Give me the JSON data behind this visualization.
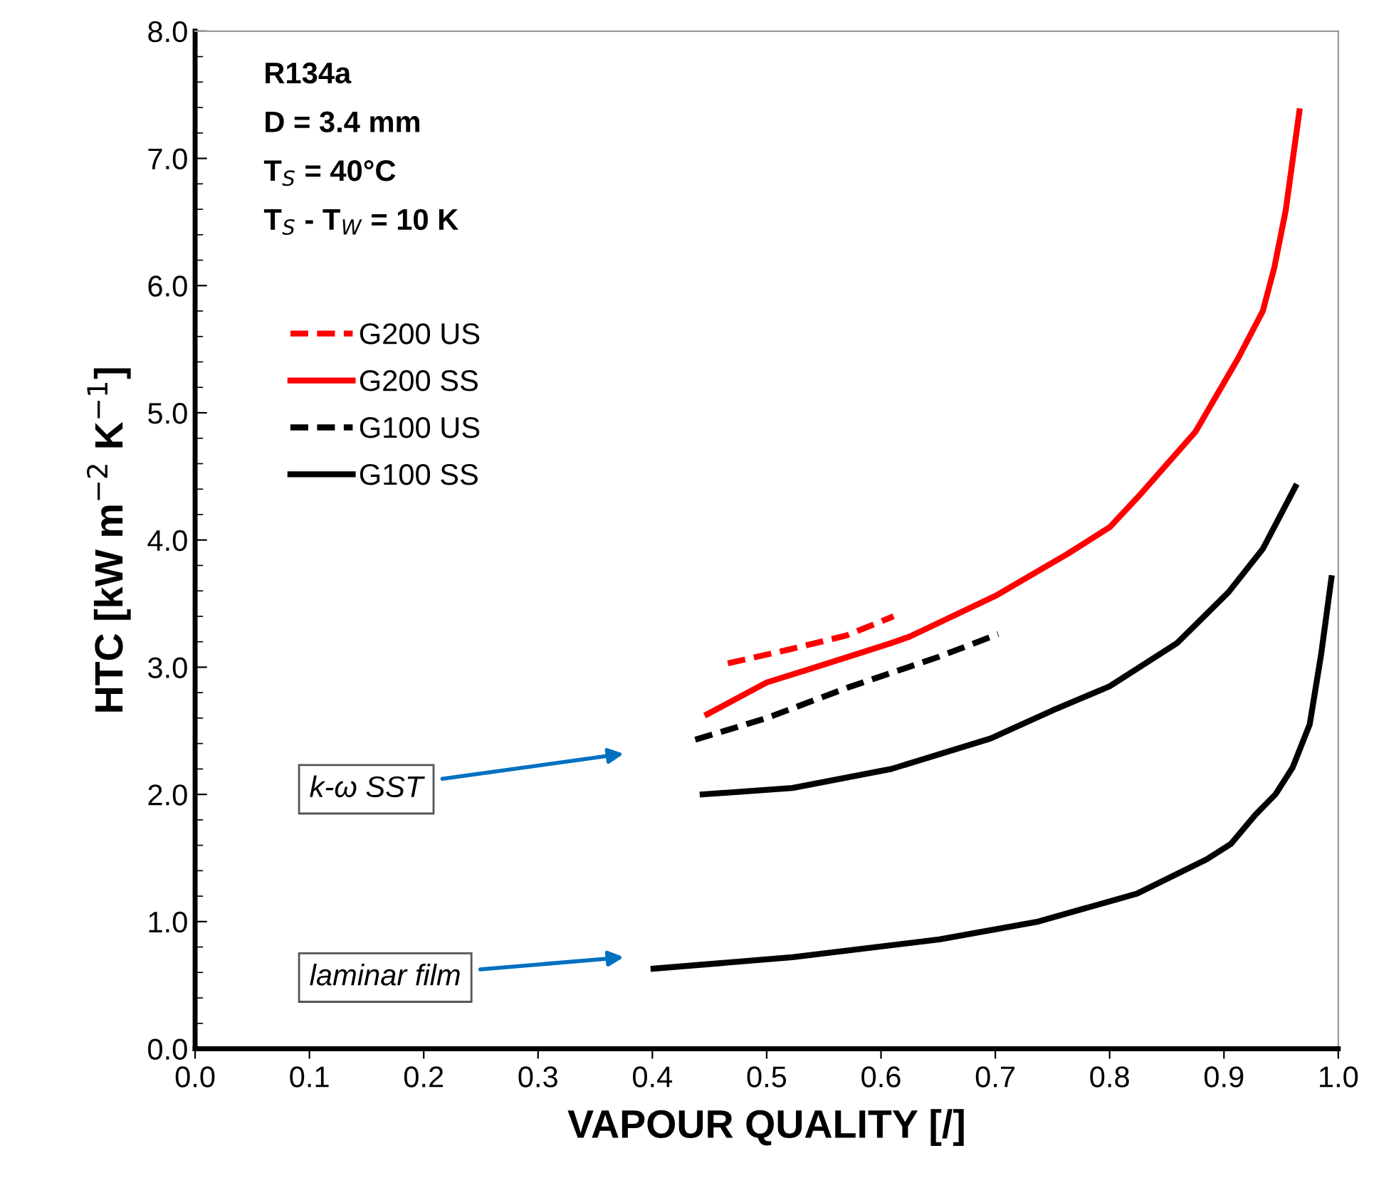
{
  "chart_data": {
    "type": "line",
    "xlabel": "VAPOUR QUALITY [/]",
    "ylabel": "HTC [kW m$^{−2}$ K$^{−1}$]",
    "xlim": [
      0,
      1
    ],
    "ylim": [
      0,
      8
    ],
    "xticks": [
      {
        "value": 0,
        "label": "0.0"
      },
      {
        "value": 0.1,
        "label": "0.1"
      },
      {
        "value": 0.2,
        "label": "0.2"
      },
      {
        "value": 0.3,
        "label": "0.3"
      },
      {
        "value": 0.4,
        "label": "0.4"
      },
      {
        "value": 0.5,
        "label": "0.5"
      },
      {
        "value": 0.6,
        "label": "0.6"
      },
      {
        "value": 0.7,
        "label": "0.7"
      },
      {
        "value": 0.8,
        "label": "0.8"
      },
      {
        "value": 0.9,
        "label": "0.9"
      },
      {
        "value": 1,
        "label": "1.0"
      }
    ],
    "yticks": [
      {
        "value": 0,
        "label": "0.0"
      },
      {
        "value": 1,
        "label": "1.0"
      },
      {
        "value": 2,
        "label": "2.0"
      },
      {
        "value": 3,
        "label": "3.0"
      },
      {
        "value": 4,
        "label": "4.0"
      },
      {
        "value": 5,
        "label": "5.0"
      },
      {
        "value": 6,
        "label": "6.0"
      },
      {
        "value": 7,
        "label": "7.0"
      },
      {
        "value": 8,
        "label": "8.0"
      }
    ],
    "grid": false,
    "legend": "top left",
    "marker": "none",
    "series": [
      {
        "name": "G200 US",
        "color": "#ff0000",
        "line_style": "dashed",
        "x": [
          0.466,
          0.52,
          0.57,
          0.611
        ],
        "values": [
          3.03,
          3.14,
          3.25,
          3.4
        ]
      },
      {
        "name": "G200 SS",
        "color": "#ff0000",
        "line_style": "solid",
        "x": [
          0.448,
          0.5,
          0.55,
          0.609,
          0.625,
          0.7,
          0.763,
          0.8,
          0.825,
          0.875,
          0.9125,
          0.934,
          0.944,
          0.954,
          0.966
        ],
        "values": [
          2.63,
          2.88,
          3.02,
          3.19,
          3.24,
          3.56,
          3.89,
          4.1,
          4.34,
          4.85,
          5.43,
          5.8,
          6.14,
          6.59,
          7.37
        ]
      },
      {
        "name": "G100 US",
        "color": "#000000",
        "line_style": "dashed",
        "x": [
          0.4375,
          0.5,
          0.571,
          0.65,
          0.7025
        ],
        "values": [
          2.43,
          2.6,
          2.84,
          3.08,
          3.26
        ]
      },
      {
        "name": "G100 SS",
        "color": "#000000",
        "line_style": "solid",
        "x": [
          0.444,
          0.5225,
          0.609,
          0.696,
          0.75,
          0.8,
          0.859,
          0.904,
          0.934,
          0.9625
        ],
        "values": [
          2.0,
          2.05,
          2.2,
          2.44,
          2.66,
          2.85,
          3.19,
          3.59,
          3.93,
          4.42
        ]
      },
      {
        "color": "#000000",
        "line_style": "solid",
        "x": [
          0.401,
          0.5225,
          0.651,
          0.7375,
          0.824,
          0.885,
          0.906,
          0.9275,
          0.945,
          0.96,
          0.975,
          0.985,
          0.994
        ],
        "values": [
          0.63,
          0.72,
          0.86,
          1.0,
          1.22,
          1.49,
          1.61,
          1.84,
          2.0,
          2.21,
          2.55,
          3.1,
          3.7
        ]
      }
    ],
    "annotations": [
      "R134a",
      "D = 3.4 mm",
      "T$_{S}$ = 40°C",
      "T$_{S}$ - T$_{W}$ = 10 K",
      "k-ω SST",
      "laminar film"
    ]
  }
}
